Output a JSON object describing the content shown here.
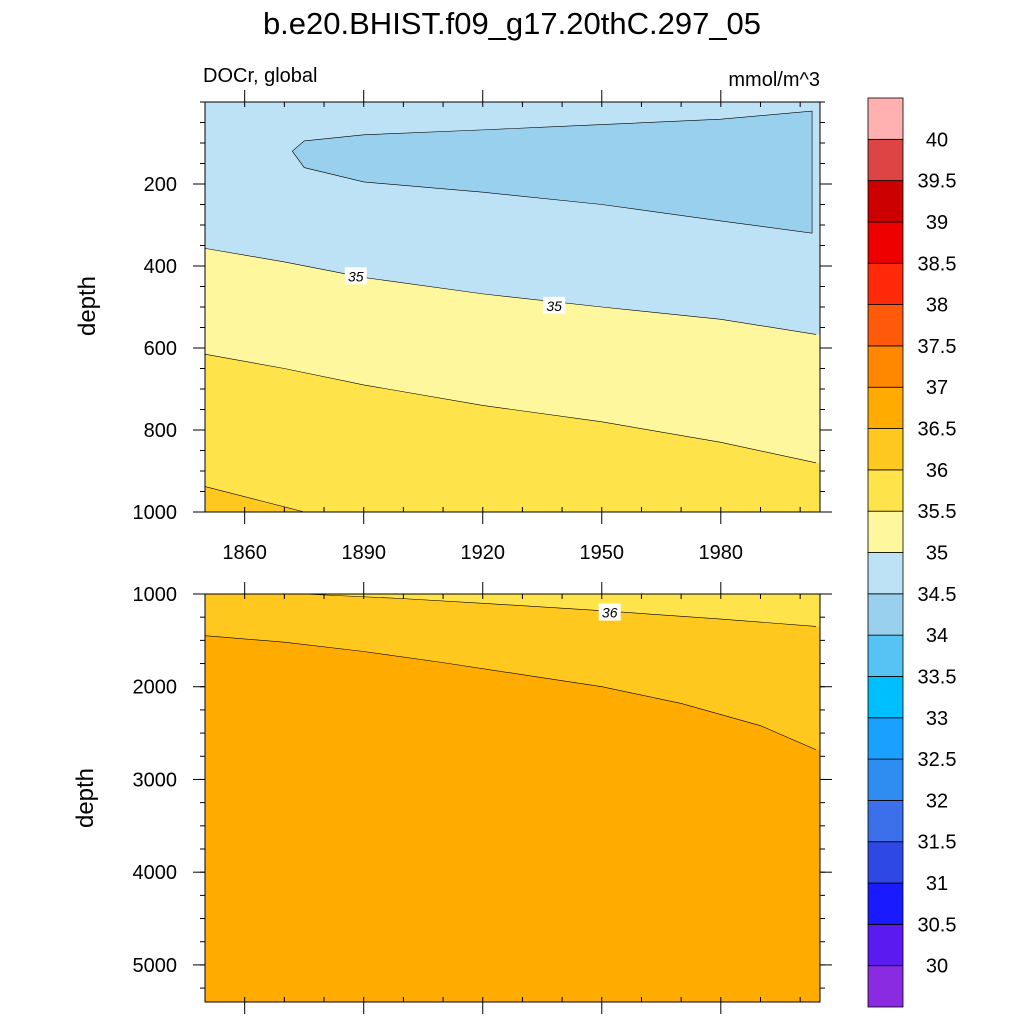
{
  "title": "b.e20.BHIST.f09_g17.20thC.297_05",
  "chart_data": [
    {
      "type": "contour",
      "panel": "upper",
      "variable": "DOCr, global",
      "units": "mmol/m^3",
      "xlabel": "",
      "ylabel": "depth",
      "xlim": [
        1850,
        2005
      ],
      "ylim": [
        1000,
        0
      ],
      "xticks": [
        1860,
        1890,
        1920,
        1950,
        1980
      ],
      "yticks": [
        200,
        400,
        600,
        800,
        1000
      ],
      "contour_lines": [
        {
          "level": 34.5,
          "points": [
            [
              1872,
              120
            ],
            [
              1875,
              95
            ],
            [
              1890,
              80
            ],
            [
              1920,
              68
            ],
            [
              1950,
              55
            ],
            [
              1980,
              42
            ],
            [
              2003,
              22
            ]
          ],
          "closed_tail": [
            [
              2003,
              320
            ],
            [
              1980,
              290
            ],
            [
              1950,
              250
            ],
            [
              1920,
              220
            ],
            [
              1890,
              195
            ],
            [
              1875,
              160
            ]
          ]
        },
        {
          "level": 35,
          "points": [
            [
              1850,
              357
            ],
            [
              1870,
              390
            ],
            [
              1890,
              428
            ],
            [
              1920,
              468
            ],
            [
              1950,
              500
            ],
            [
              1980,
              530
            ],
            [
              2004,
              567
            ]
          ]
        },
        {
          "level": 35.5,
          "points": [
            [
              1850,
              615
            ],
            [
              1870,
              650
            ],
            [
              1890,
              690
            ],
            [
              1920,
              740
            ],
            [
              1950,
              780
            ],
            [
              1980,
              830
            ],
            [
              2004,
              880
            ]
          ]
        },
        {
          "level": 36,
          "points": [
            [
              1850,
              938
            ],
            [
              1865,
              975
            ],
            [
              1875,
              1000
            ]
          ]
        }
      ],
      "contour_labels": [
        {
          "text": "35",
          "x": 1888,
          "y": 425
        },
        {
          "text": "35",
          "x": 1938,
          "y": 497
        }
      ]
    },
    {
      "type": "contour",
      "panel": "lower",
      "variable": "",
      "units": "",
      "xlabel": "",
      "ylabel": "depth",
      "xlim": [
        1850,
        2005
      ],
      "ylim": [
        5400,
        1000
      ],
      "xticks": [
        1860,
        1890,
        1920,
        1950,
        1980
      ],
      "yticks": [
        1000,
        2000,
        3000,
        4000,
        5000
      ],
      "contour_lines": [
        {
          "level": 36,
          "points": [
            [
              1875,
              1000
            ],
            [
              1900,
              1050
            ],
            [
              1920,
              1100
            ],
            [
              1950,
              1180
            ],
            [
              1980,
              1270
            ],
            [
              2004,
              1350
            ]
          ]
        },
        {
          "level": 36.5,
          "points": [
            [
              1850,
              1450
            ],
            [
              1870,
              1520
            ],
            [
              1890,
              1620
            ],
            [
              1910,
              1740
            ],
            [
              1930,
              1870
            ],
            [
              1950,
              2000
            ],
            [
              1970,
              2180
            ],
            [
              1990,
              2420
            ],
            [
              2004,
              2680
            ]
          ]
        }
      ],
      "contour_labels": [
        {
          "text": "36",
          "x": 1952,
          "y": 1200
        }
      ]
    }
  ],
  "colorbar": {
    "levels": [
      "30",
      "30.5",
      "31",
      "31.5",
      "32",
      "32.5",
      "33",
      "33.5",
      "34",
      "34.5",
      "35",
      "35.5",
      "36",
      "36.5",
      "37",
      "37.5",
      "38",
      "38.5",
      "39",
      "39.5",
      "40"
    ],
    "colors": [
      "#8a2be2",
      "#5a1af0",
      "#1a1aff",
      "#2e48e6",
      "#3b70ea",
      "#2f8cf0",
      "#1aa0ff",
      "#00bfff",
      "#55c4f4",
      "#98d0ee",
      "#bde2f5",
      "#fff79e",
      "#ffe34a",
      "#ffc81e",
      "#ffab00",
      "#ff8800",
      "#ff5a0a",
      "#ff2a0a",
      "#ee0000",
      "#cc0000",
      "#dd4444",
      "#ffb0b0"
    ]
  }
}
